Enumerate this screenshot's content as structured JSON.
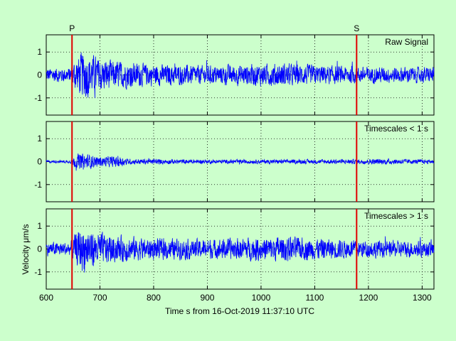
{
  "figure": {
    "xlabel": "Time s from 16-Oct-2019 11:37:10 UTC",
    "ylabel": "Velocity μm/s",
    "xlim": [
      600,
      1322
    ],
    "xticks": [
      600,
      700,
      800,
      900,
      1000,
      1100,
      1200,
      1300
    ],
    "colors": {
      "background": "#ccffcc",
      "trace": "#0000ff",
      "phase_line": "#e00000",
      "axes": "#000000"
    }
  },
  "chart_data": [
    {
      "type": "line",
      "title": "Raw Signal",
      "ylim": [
        -1.75,
        1.75
      ],
      "yticks": [
        -1,
        0,
        1
      ],
      "grid": true,
      "markers": [
        {
          "label": "P",
          "x": 648
        },
        {
          "label": "S",
          "x": 1178
        }
      ],
      "envelope": [
        {
          "x": 600,
          "amp": 0.38
        },
        {
          "x": 645,
          "amp": 0.38
        },
        {
          "x": 652,
          "amp": 0.75
        },
        {
          "x": 670,
          "amp": 1.3
        },
        {
          "x": 690,
          "amp": 0.95
        },
        {
          "x": 720,
          "amp": 0.75
        },
        {
          "x": 800,
          "amp": 0.55
        },
        {
          "x": 900,
          "amp": 0.48
        },
        {
          "x": 1040,
          "amp": 0.6
        },
        {
          "x": 1100,
          "amp": 0.5
        },
        {
          "x": 1200,
          "amp": 0.42
        },
        {
          "x": 1322,
          "amp": 0.4
        }
      ]
    },
    {
      "type": "line",
      "title": "Timescales < 1 s",
      "ylim": [
        -1.75,
        1.75
      ],
      "yticks": [
        -1,
        0,
        1
      ],
      "grid": true,
      "markers": [
        {
          "label": "",
          "x": 648
        },
        {
          "label": "",
          "x": 1178
        }
      ],
      "envelope": [
        {
          "x": 600,
          "amp": 0.07
        },
        {
          "x": 645,
          "amp": 0.07
        },
        {
          "x": 652,
          "amp": 0.3
        },
        {
          "x": 665,
          "amp": 0.45
        },
        {
          "x": 700,
          "amp": 0.25
        },
        {
          "x": 735,
          "amp": 0.3
        },
        {
          "x": 750,
          "amp": 0.15
        },
        {
          "x": 900,
          "amp": 0.1
        },
        {
          "x": 1180,
          "amp": 0.12
        },
        {
          "x": 1230,
          "amp": 0.15
        },
        {
          "x": 1322,
          "amp": 0.1
        }
      ]
    },
    {
      "type": "line",
      "title": "Timescales > 1 s",
      "ylim": [
        -1.75,
        1.75
      ],
      "yticks": [
        -1,
        0,
        1
      ],
      "grid": true,
      "markers": [
        {
          "label": "",
          "x": 648
        },
        {
          "label": "",
          "x": 1178
        }
      ],
      "envelope": [
        {
          "x": 600,
          "amp": 0.35
        },
        {
          "x": 645,
          "amp": 0.35
        },
        {
          "x": 652,
          "amp": 0.7
        },
        {
          "x": 670,
          "amp": 1.25
        },
        {
          "x": 690,
          "amp": 0.9
        },
        {
          "x": 720,
          "amp": 0.7
        },
        {
          "x": 800,
          "amp": 0.55
        },
        {
          "x": 900,
          "amp": 0.5
        },
        {
          "x": 1040,
          "amp": 0.65
        },
        {
          "x": 1100,
          "amp": 0.55
        },
        {
          "x": 1200,
          "amp": 0.45
        },
        {
          "x": 1322,
          "amp": 0.4
        }
      ]
    }
  ]
}
